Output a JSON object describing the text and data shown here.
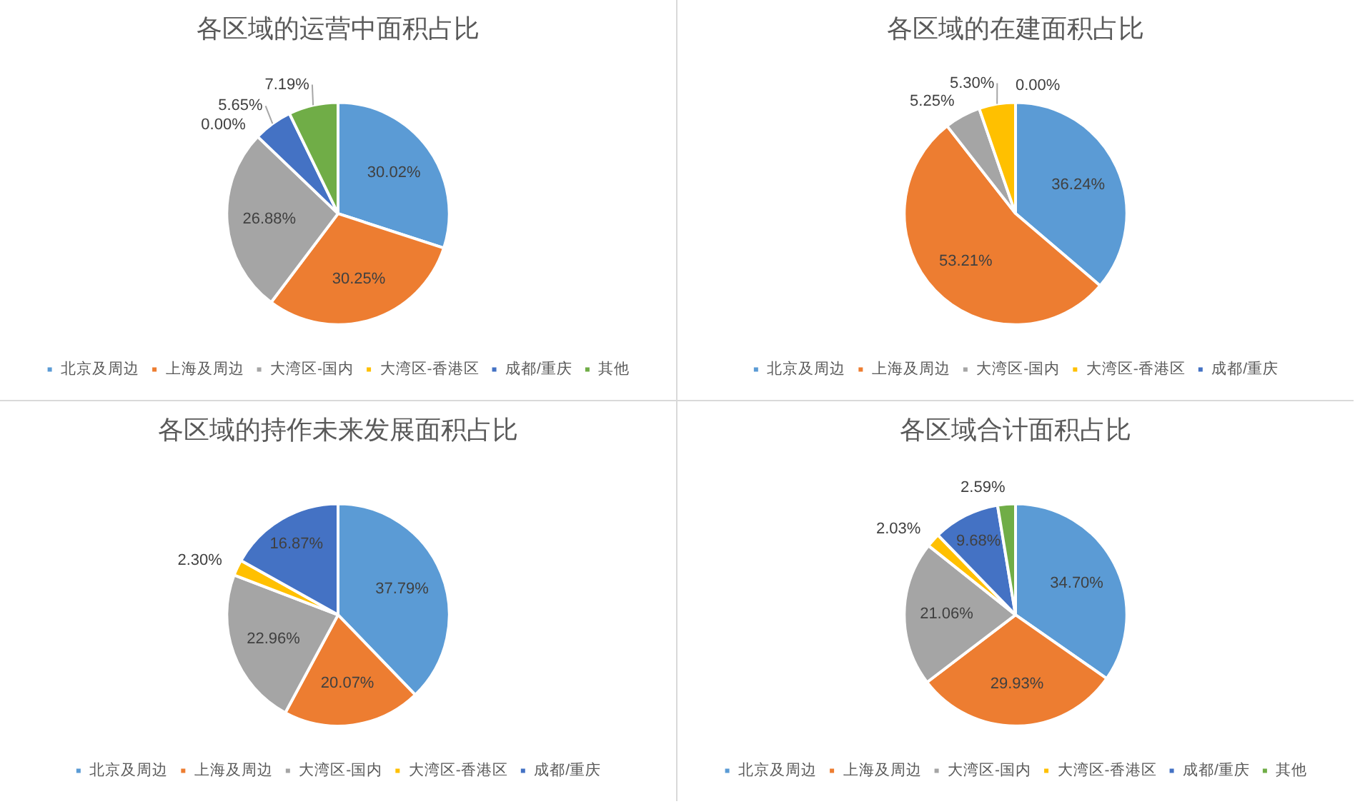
{
  "chart_data": [
    {
      "type": "pie",
      "title": "各区域的运营中面积占比",
      "categories": [
        "北京及周边",
        "上海及周边",
        "大湾区-国内",
        "大湾区-香港区",
        "成都/重庆",
        "其他"
      ],
      "values": [
        30.02,
        30.25,
        26.88,
        0.0,
        5.65,
        7.19
      ],
      "value_labels": [
        "30.02%",
        "30.25%",
        "26.88%",
        "0.00%",
        "5.65%",
        "7.19%"
      ],
      "colors": [
        "#5b9bd5",
        "#ed7d31",
        "#a5a5a5",
        "#ffc000",
        "#4472c4",
        "#70ad47"
      ],
      "legend": "bottom"
    },
    {
      "type": "pie",
      "title": "各区域的在建面积占比",
      "categories": [
        "北京及周边",
        "上海及周边",
        "大湾区-国内",
        "大湾区-香港区",
        "成都/重庆"
      ],
      "values": [
        36.24,
        53.21,
        5.25,
        5.3,
        0.0
      ],
      "value_labels": [
        "36.24%",
        "53.21%",
        "5.25%",
        "5.30%",
        "0.00%"
      ],
      "colors": [
        "#5b9bd5",
        "#ed7d31",
        "#a5a5a5",
        "#ffc000",
        "#4472c4"
      ],
      "legend": "bottom"
    },
    {
      "type": "pie",
      "title": "各区域的持作未来发展面积占比",
      "categories": [
        "北京及周边",
        "上海及周边",
        "大湾区-国内",
        "大湾区-香港区",
        "成都/重庆"
      ],
      "values": [
        37.79,
        20.07,
        22.96,
        2.3,
        16.87
      ],
      "value_labels": [
        "37.79%",
        "20.07%",
        "22.96%",
        "2.30%",
        "16.87%"
      ],
      "colors": [
        "#5b9bd5",
        "#ed7d31",
        "#a5a5a5",
        "#ffc000",
        "#4472c4"
      ],
      "legend": "bottom"
    },
    {
      "type": "pie",
      "title": "各区域合计面积占比",
      "categories": [
        "北京及周边",
        "上海及周边",
        "大湾区-国内",
        "大湾区-香港区",
        "成都/重庆",
        "其他"
      ],
      "values": [
        34.7,
        29.93,
        21.06,
        2.03,
        9.68,
        2.59
      ],
      "value_labels": [
        "34.70%",
        "29.93%",
        "21.06%",
        "2.03%",
        "9.68%",
        "2.59%"
      ],
      "colors": [
        "#5b9bd5",
        "#ed7d31",
        "#a5a5a5",
        "#ffc000",
        "#4472c4",
        "#70ad47"
      ],
      "legend": "bottom"
    }
  ]
}
